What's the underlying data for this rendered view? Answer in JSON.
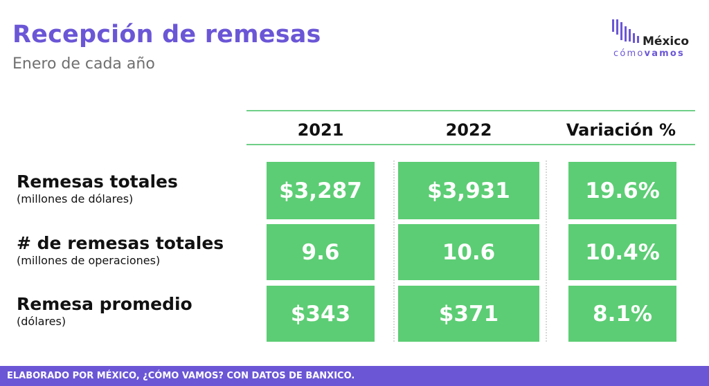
{
  "header": {
    "title": "Recepción de remesas",
    "subtitle": "Enero de cada año"
  },
  "logo": {
    "word": "México",
    "sub_light": "cómo",
    "sub_bold": "vamos",
    "brand_color": "#6b56d6"
  },
  "table": {
    "columns": [
      "2021",
      "2022",
      "Variación %"
    ],
    "rows": [
      {
        "label": "Remesas totales",
        "sublabel": "(millones de dólares)",
        "values": [
          "$3,287",
          "$3,931",
          "19.6%"
        ]
      },
      {
        "label": "# de remesas totales",
        "sublabel": "(millones de operaciones)",
        "values": [
          "9.6",
          "10.6",
          "10.4%"
        ]
      },
      {
        "label": "Remesa promedio",
        "sublabel": "(dólares)",
        "values": [
          "$343",
          "$371",
          "8.1%"
        ]
      }
    ],
    "cell_color": "#5ccd74",
    "rule_color": "#6fcf86"
  },
  "footer": {
    "text": "ELABORADO POR MÉXICO, ¿CÓMO VAMOS? CON DATOS DE BANXICO."
  }
}
